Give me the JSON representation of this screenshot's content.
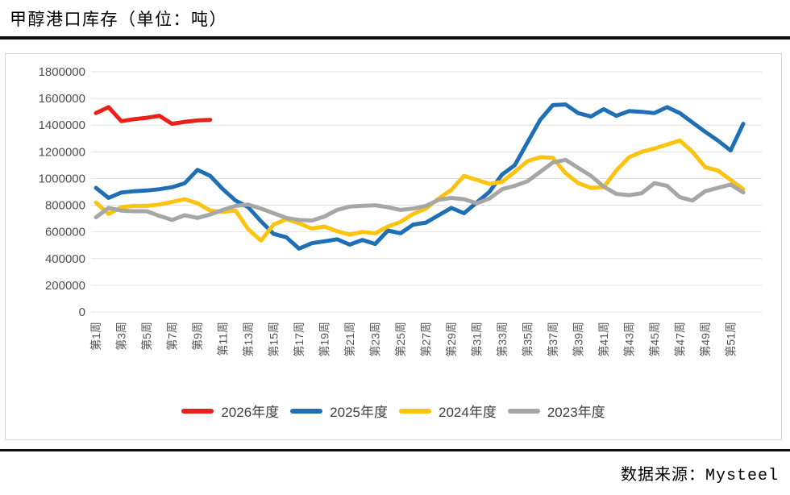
{
  "title": "甲醇港口库存（单位：吨）",
  "footer": {
    "source": "数据来源：Mysteel"
  },
  "chart_data": {
    "type": "line",
    "title": "甲醇港口库存（单位：吨）",
    "unit": "吨",
    "grid": "horizontal",
    "legend_position": "bottom-center",
    "x_axis": {
      "weeks_total": 52,
      "tick_labels": [
        "第1周",
        "第3周",
        "第5周",
        "第7周",
        "第9周",
        "第11周",
        "第13周",
        "第15周",
        "第17周",
        "第19周",
        "第21周",
        "第23周",
        "第25周",
        "第27周",
        "第29周",
        "第31周",
        "第33周",
        "第35周",
        "第37周",
        "第39周",
        "第41周",
        "第43周",
        "第45周",
        "第47周",
        "第49周",
        "第51周"
      ]
    },
    "y_axis": {
      "min": 0,
      "max": 1800000,
      "tick_step": 200000,
      "ticks": [
        1800000,
        1600000,
        1400000,
        1200000,
        1000000,
        800000,
        600000,
        400000,
        200000,
        0
      ]
    },
    "series": [
      {
        "name": "2026年度",
        "color": "#e8221a",
        "start_week": 1,
        "values": [
          1490000,
          1535000,
          1430000,
          1445000,
          1455000,
          1470000,
          1410000,
          1425000,
          1435000,
          1440000
        ]
      },
      {
        "name": "2025年度",
        "color": "#1f6fb5",
        "start_week": 1,
        "values": [
          930000,
          855000,
          895000,
          905000,
          910000,
          920000,
          935000,
          965000,
          1065000,
          1020000,
          920000,
          835000,
          785000,
          680000,
          585000,
          560000,
          475000,
          515000,
          530000,
          545000,
          505000,
          540000,
          510000,
          610000,
          590000,
          655000,
          670000,
          725000,
          780000,
          740000,
          820000,
          900000,
          1030000,
          1100000,
          1270000,
          1440000,
          1550000,
          1555000,
          1490000,
          1465000,
          1520000,
          1470000,
          1505000,
          1500000,
          1490000,
          1535000,
          1490000,
          1420000,
          1350000,
          1285000,
          1210000,
          1410000
        ]
      },
      {
        "name": "2024年度",
        "color": "#fcc30f",
        "start_week": 1,
        "values": [
          820000,
          735000,
          785000,
          795000,
          795000,
          805000,
          825000,
          845000,
          815000,
          760000,
          750000,
          760000,
          620000,
          535000,
          655000,
          695000,
          665000,
          625000,
          640000,
          605000,
          580000,
          600000,
          590000,
          640000,
          675000,
          735000,
          775000,
          850000,
          915000,
          1020000,
          990000,
          960000,
          975000,
          1050000,
          1130000,
          1160000,
          1155000,
          1040000,
          965000,
          930000,
          935000,
          1060000,
          1160000,
          1200000,
          1225000,
          1255000,
          1285000,
          1200000,
          1085000,
          1060000,
          990000,
          920000
        ]
      },
      {
        "name": "2023年度",
        "color": "#a6a6a6",
        "start_week": 1,
        "values": [
          710000,
          780000,
          760000,
          755000,
          755000,
          720000,
          690000,
          725000,
          705000,
          730000,
          765000,
          795000,
          805000,
          775000,
          740000,
          705000,
          690000,
          685000,
          715000,
          765000,
          790000,
          795000,
          800000,
          785000,
          765000,
          775000,
          795000,
          840000,
          855000,
          845000,
          815000,
          850000,
          920000,
          945000,
          980000,
          1050000,
          1120000,
          1140000,
          1080000,
          1020000,
          940000,
          885000,
          875000,
          890000,
          965000,
          945000,
          860000,
          835000,
          905000,
          930000,
          955000,
          895000
        ]
      }
    ]
  }
}
